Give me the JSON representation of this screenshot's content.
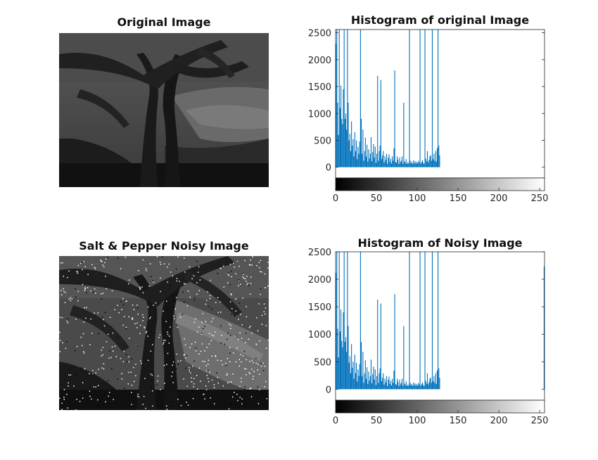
{
  "panels": {
    "original_title": "Original Image",
    "noisy_title": "Salt & Pepper Noisy Image"
  },
  "chart_data": [
    {
      "type": "bar",
      "title": "Histogram of original Image",
      "xlabel": "",
      "ylabel": "",
      "xlim": [
        0,
        256
      ],
      "ylim": [
        -200,
        2560
      ],
      "xticks": [
        0,
        50,
        100,
        150,
        200,
        250
      ],
      "yticks": [
        0,
        500,
        1000,
        1500,
        2000,
        2500
      ],
      "grid": false,
      "color": "#0072BD",
      "colorbar": "grayscale 0-255 below axis",
      "bins": [
        [
          0,
          2300
        ],
        [
          1,
          2560
        ],
        [
          2,
          1200
        ],
        [
          3,
          600
        ],
        [
          4,
          2560
        ],
        [
          5,
          1100
        ],
        [
          6,
          1520
        ],
        [
          7,
          900
        ],
        [
          8,
          800
        ],
        [
          9,
          1450
        ],
        [
          10,
          2560
        ],
        [
          11,
          900
        ],
        [
          12,
          1000
        ],
        [
          13,
          700
        ],
        [
          14,
          2560
        ],
        [
          15,
          1200
        ],
        [
          16,
          500
        ],
        [
          17,
          620
        ],
        [
          18,
          300
        ],
        [
          19,
          850
        ],
        [
          20,
          400
        ],
        [
          21,
          520
        ],
        [
          22,
          200
        ],
        [
          23,
          650
        ],
        [
          24,
          300
        ],
        [
          25,
          500
        ],
        [
          26,
          150
        ],
        [
          27,
          380
        ],
        [
          28,
          250
        ],
        [
          29,
          480
        ],
        [
          30,
          2560
        ],
        [
          31,
          900
        ],
        [
          32,
          250
        ],
        [
          33,
          700
        ],
        [
          34,
          120
        ],
        [
          35,
          300
        ],
        [
          36,
          550
        ],
        [
          37,
          200
        ],
        [
          38,
          420
        ],
        [
          39,
          100
        ],
        [
          40,
          330
        ],
        [
          41,
          160
        ],
        [
          42,
          250
        ],
        [
          43,
          560
        ],
        [
          44,
          110
        ],
        [
          45,
          280
        ],
        [
          46,
          430
        ],
        [
          47,
          180
        ],
        [
          48,
          380
        ],
        [
          49,
          80
        ],
        [
          50,
          250
        ],
        [
          51,
          1700
        ],
        [
          52,
          120
        ],
        [
          53,
          300
        ],
        [
          54,
          400
        ],
        [
          55,
          1620
        ],
        [
          56,
          150
        ],
        [
          57,
          220
        ],
        [
          58,
          300
        ],
        [
          59,
          90
        ],
        [
          60,
          200
        ],
        [
          61,
          130
        ],
        [
          62,
          250
        ],
        [
          63,
          60
        ],
        [
          64,
          180
        ],
        [
          65,
          240
        ],
        [
          66,
          100
        ],
        [
          67,
          160
        ],
        [
          68,
          70
        ],
        [
          69,
          200
        ],
        [
          70,
          120
        ],
        [
          71,
          350
        ],
        [
          72,
          1800
        ],
        [
          73,
          100
        ],
        [
          74,
          80
        ],
        [
          75,
          200
        ],
        [
          76,
          140
        ],
        [
          77,
          60
        ],
        [
          78,
          180
        ],
        [
          79,
          90
        ],
        [
          80,
          120
        ],
        [
          81,
          200
        ],
        [
          82,
          60
        ],
        [
          83,
          1200
        ],
        [
          84,
          110
        ],
        [
          85,
          80
        ],
        [
          86,
          150
        ],
        [
          87,
          60
        ],
        [
          88,
          90
        ],
        [
          89,
          70
        ],
        [
          90,
          2560
        ],
        [
          91,
          120
        ],
        [
          92,
          70
        ],
        [
          93,
          100
        ],
        [
          94,
          60
        ],
        [
          95,
          130
        ],
        [
          96,
          80
        ],
        [
          97,
          110
        ],
        [
          98,
          60
        ],
        [
          99,
          100
        ],
        [
          100,
          70
        ],
        [
          101,
          120
        ],
        [
          102,
          90
        ],
        [
          103,
          2560
        ],
        [
          104,
          60
        ],
        [
          105,
          100
        ],
        [
          106,
          130
        ],
        [
          107,
          80
        ],
        [
          108,
          60
        ],
        [
          109,
          2560
        ],
        [
          110,
          160
        ],
        [
          111,
          110
        ],
        [
          112,
          300
        ],
        [
          113,
          90
        ],
        [
          114,
          130
        ],
        [
          115,
          200
        ],
        [
          116,
          220
        ],
        [
          117,
          120
        ],
        [
          118,
          2560
        ],
        [
          119,
          150
        ],
        [
          120,
          250
        ],
        [
          121,
          120
        ],
        [
          122,
          300
        ],
        [
          123,
          100
        ],
        [
          124,
          350
        ],
        [
          125,
          2560
        ],
        [
          126,
          400
        ],
        [
          127,
          220
        ]
      ]
    },
    {
      "type": "bar",
      "title": "Histogram of Noisy Image",
      "xlabel": "",
      "ylabel": "",
      "xlim": [
        0,
        256
      ],
      "ylim": [
        -200,
        2500
      ],
      "xticks": [
        0,
        50,
        100,
        150,
        200,
        250
      ],
      "yticks": [
        0,
        500,
        1000,
        1500,
        2000,
        2500
      ],
      "grid": false,
      "color": "#0072BD",
      "colorbar": "grayscale 0-255 below axis",
      "bins": [
        [
          0,
          2120
        ],
        [
          1,
          2500
        ],
        [
          2,
          1100
        ],
        [
          3,
          580
        ],
        [
          4,
          2500
        ],
        [
          5,
          1050
        ],
        [
          6,
          1450
        ],
        [
          7,
          880
        ],
        [
          8,
          760
        ],
        [
          9,
          1400
        ],
        [
          10,
          2500
        ],
        [
          11,
          860
        ],
        [
          12,
          950
        ],
        [
          13,
          680
        ],
        [
          14,
          2500
        ],
        [
          15,
          1150
        ],
        [
          16,
          480
        ],
        [
          17,
          600
        ],
        [
          18,
          290
        ],
        [
          19,
          820
        ],
        [
          20,
          390
        ],
        [
          21,
          500
        ],
        [
          22,
          190
        ],
        [
          23,
          630
        ],
        [
          24,
          290
        ],
        [
          25,
          480
        ],
        [
          26,
          140
        ],
        [
          27,
          360
        ],
        [
          28,
          240
        ],
        [
          29,
          460
        ],
        [
          30,
          2500
        ],
        [
          31,
          860
        ],
        [
          32,
          240
        ],
        [
          33,
          680
        ],
        [
          34,
          115
        ],
        [
          35,
          290
        ],
        [
          36,
          530
        ],
        [
          37,
          190
        ],
        [
          38,
          400
        ],
        [
          39,
          95
        ],
        [
          40,
          320
        ],
        [
          41,
          155
        ],
        [
          42,
          240
        ],
        [
          43,
          540
        ],
        [
          44,
          105
        ],
        [
          45,
          270
        ],
        [
          46,
          410
        ],
        [
          47,
          175
        ],
        [
          48,
          360
        ],
        [
          49,
          75
        ],
        [
          50,
          240
        ],
        [
          51,
          1630
        ],
        [
          52,
          115
        ],
        [
          53,
          290
        ],
        [
          54,
          380
        ],
        [
          55,
          1560
        ],
        [
          56,
          145
        ],
        [
          57,
          210
        ],
        [
          58,
          290
        ],
        [
          59,
          85
        ],
        [
          60,
          190
        ],
        [
          61,
          125
        ],
        [
          62,
          240
        ],
        [
          63,
          58
        ],
        [
          64,
          175
        ],
        [
          65,
          230
        ],
        [
          66,
          95
        ],
        [
          67,
          155
        ],
        [
          68,
          68
        ],
        [
          69,
          190
        ],
        [
          70,
          115
        ],
        [
          71,
          340
        ],
        [
          72,
          1730
        ],
        [
          73,
          95
        ],
        [
          74,
          78
        ],
        [
          75,
          190
        ],
        [
          76,
          135
        ],
        [
          77,
          58
        ],
        [
          78,
          175
        ],
        [
          79,
          85
        ],
        [
          80,
          115
        ],
        [
          81,
          190
        ],
        [
          82,
          58
        ],
        [
          83,
          1150
        ],
        [
          84,
          105
        ],
        [
          85,
          78
        ],
        [
          86,
          145
        ],
        [
          87,
          58
        ],
        [
          88,
          85
        ],
        [
          89,
          68
        ],
        [
          90,
          2500
        ],
        [
          91,
          115
        ],
        [
          92,
          68
        ],
        [
          93,
          95
        ],
        [
          94,
          58
        ],
        [
          95,
          125
        ],
        [
          96,
          78
        ],
        [
          97,
          105
        ],
        [
          98,
          58
        ],
        [
          99,
          95
        ],
        [
          100,
          68
        ],
        [
          101,
          115
        ],
        [
          102,
          85
        ],
        [
          103,
          2500
        ],
        [
          104,
          58
        ],
        [
          105,
          95
        ],
        [
          106,
          125
        ],
        [
          107,
          78
        ],
        [
          108,
          58
        ],
        [
          109,
          2500
        ],
        [
          110,
          155
        ],
        [
          111,
          105
        ],
        [
          112,
          290
        ],
        [
          113,
          85
        ],
        [
          114,
          125
        ],
        [
          115,
          190
        ],
        [
          116,
          210
        ],
        [
          117,
          115
        ],
        [
          118,
          2500
        ],
        [
          119,
          145
        ],
        [
          120,
          240
        ],
        [
          121,
          115
        ],
        [
          122,
          290
        ],
        [
          123,
          95
        ],
        [
          124,
          340
        ],
        [
          125,
          2500
        ],
        [
          126,
          380
        ],
        [
          127,
          210
        ],
        [
          255,
          2230
        ]
      ]
    }
  ]
}
